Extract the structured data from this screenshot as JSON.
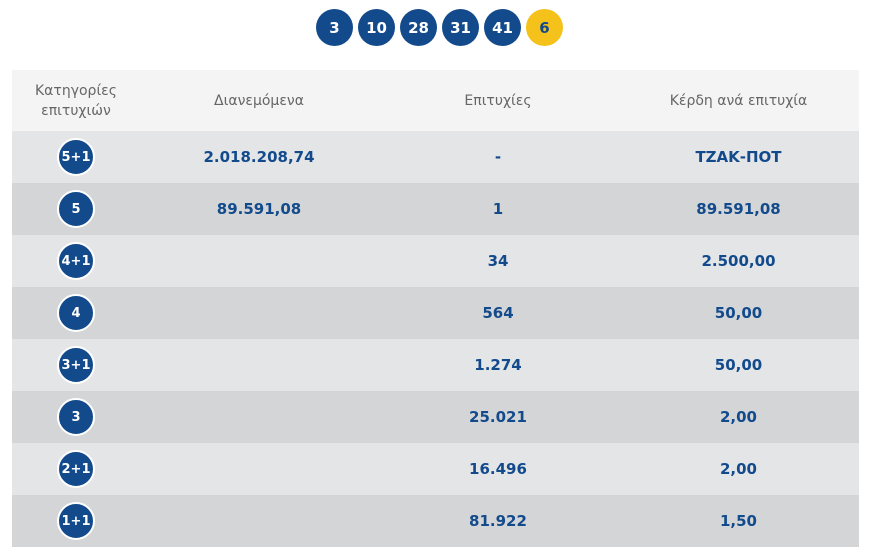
{
  "draw": {
    "numbers": [
      "3",
      "10",
      "28",
      "31",
      "41"
    ],
    "bonus": "6"
  },
  "table": {
    "headers": {
      "category": "Κατηγορίες επιτυχιών",
      "distributed": "Διανεμόμενα",
      "winners": "Επιτυχίες",
      "prize": "Κέρδη ανά επιτυχία"
    },
    "rows": [
      {
        "category": "5+1",
        "distributed": "2.018.208,74",
        "winners": "-",
        "prize": "ΤΖΑΚ-ΠΟΤ"
      },
      {
        "category": "5",
        "distributed": "89.591,08",
        "winners": "1",
        "prize": "89.591,08"
      },
      {
        "category": "4+1",
        "distributed": "",
        "winners": "34",
        "prize": "2.500,00"
      },
      {
        "category": "4",
        "distributed": "",
        "winners": "564",
        "prize": "50,00"
      },
      {
        "category": "3+1",
        "distributed": "",
        "winners": "1.274",
        "prize": "50,00"
      },
      {
        "category": "3",
        "distributed": "",
        "winners": "25.021",
        "prize": "2,00"
      },
      {
        "category": "2+1",
        "distributed": "",
        "winners": "16.496",
        "prize": "2,00"
      },
      {
        "category": "1+1",
        "distributed": "",
        "winners": "81.922",
        "prize": "1,50"
      }
    ]
  },
  "colors": {
    "brand_blue": "#124a8c",
    "bonus_yellow": "#f4c21a"
  }
}
